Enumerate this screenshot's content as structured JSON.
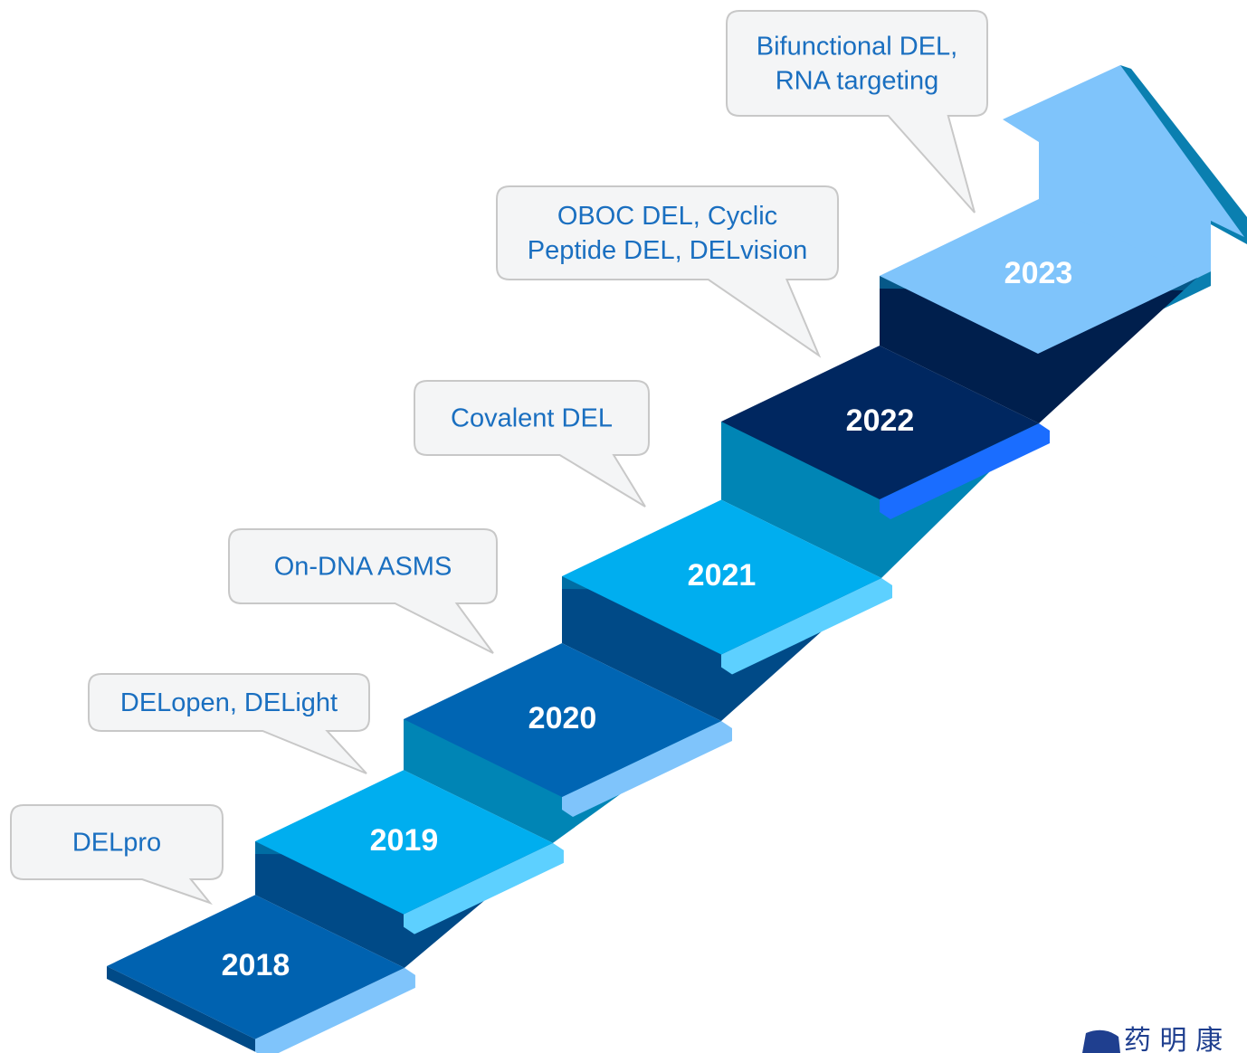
{
  "steps": [
    {
      "year": "2018",
      "callout": [
        "DELpro"
      ]
    },
    {
      "year": "2019",
      "callout": [
        "DELopen, DELight"
      ]
    },
    {
      "year": "2020",
      "callout": [
        "On-DNA ASMS"
      ]
    },
    {
      "year": "2021",
      "callout": [
        "Covalent DEL"
      ]
    },
    {
      "year": "2022",
      "callout": [
        "OBOC DEL, Cyclic",
        "Peptide DEL, DELvision"
      ]
    },
    {
      "year": "2023",
      "callout": [
        "Bifunctional DEL,",
        "RNA targeting"
      ]
    }
  ],
  "logo": "药 明 康"
}
